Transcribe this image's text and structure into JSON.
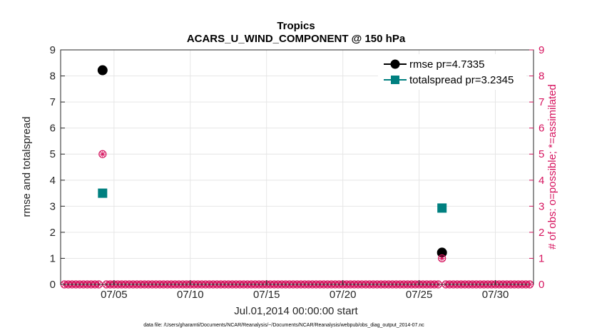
{
  "colors": {
    "rmse": "#000000",
    "spread": "#008080",
    "obs": "#d6135e",
    "grid": "#e6e6e6",
    "axis": "#262626"
  },
  "chart_data": {
    "type": "scatter",
    "title": "Tropics",
    "subtitle": "ACARS_U_WIND_COMPONENT @ 150 hPa",
    "xlabel": "Jul.01,2014 00:00:00 start",
    "ylabel_left": "rmse and totalspread",
    "ylabel_right": "# of obs: o=possible; *=assimilated",
    "footnote": "data file: /Users/gharamti/Documents/NCAR/Reanalysis/~/Documents/NCAR/Reanalysis/webpub/obs_diag_output_2014-07.nc",
    "xlim": [
      0.5,
      31.5
    ],
    "ylim": [
      0,
      9
    ],
    "ylim_right": [
      0,
      9
    ],
    "xtick_values": [
      4,
      9,
      14,
      19,
      24,
      29
    ],
    "xtick_labels": [
      "07/05",
      "07/10",
      "07/15",
      "07/20",
      "07/25",
      "07/30"
    ],
    "ytick_labels": [
      "0",
      "1",
      "2",
      "3",
      "4",
      "5",
      "6",
      "7",
      "8",
      "9"
    ],
    "ytick_labels_right": [
      "0",
      "1",
      "2",
      "3",
      "4",
      "5",
      "6",
      "7",
      "8",
      "9"
    ],
    "legend": {
      "position": "top-right",
      "entries": [
        "rmse pr=4.7335",
        "totalspread pr=3.2345"
      ]
    },
    "series": [
      {
        "name": "rmse",
        "marker": "circle",
        "points": [
          {
            "x": 3.25,
            "y": 8.22
          },
          {
            "x": 25.5,
            "y": 1.22
          }
        ]
      },
      {
        "name": "totalspread",
        "marker": "square",
        "points": [
          {
            "x": 3.25,
            "y": 3.5
          },
          {
            "x": 25.5,
            "y": 2.93
          }
        ]
      },
      {
        "name": "obs possible / assimilated",
        "marker": "circle-star",
        "points": [
          {
            "x": 3.25,
            "y": 5
          },
          {
            "x": 25.5,
            "y": 1
          }
        ]
      }
    ],
    "zero_obs_x": [
      0.75,
      1.0,
      1.25,
      1.5,
      1.75,
      2.0,
      2.25,
      2.5,
      2.75,
      3.0,
      3.5,
      3.75,
      4.0,
      4.25,
      4.5,
      4.75,
      5.0,
      5.25,
      5.5,
      5.75,
      6.0,
      6.25,
      6.5,
      6.75,
      7.0,
      7.25,
      7.5,
      7.75,
      8.0,
      8.25,
      8.5,
      8.75,
      9.0,
      9.25,
      9.5,
      9.75,
      10.0,
      10.25,
      10.5,
      10.75,
      11.0,
      11.25,
      11.5,
      11.75,
      12.0,
      12.25,
      12.5,
      12.75,
      13.0,
      13.25,
      13.5,
      13.75,
      14.0,
      14.25,
      14.5,
      14.75,
      15.0,
      15.25,
      15.5,
      15.75,
      16.0,
      16.25,
      16.5,
      16.75,
      17.0,
      17.25,
      17.5,
      17.75,
      18.0,
      18.25,
      18.5,
      18.75,
      19.0,
      19.25,
      19.5,
      19.75,
      20.0,
      20.25,
      20.5,
      20.75,
      21.0,
      21.25,
      21.5,
      21.75,
      22.0,
      22.25,
      22.5,
      22.75,
      23.0,
      23.25,
      23.5,
      23.75,
      24.0,
      24.25,
      24.5,
      24.75,
      25.0,
      25.25,
      25.75,
      26.0,
      26.25,
      26.5,
      26.75,
      27.0,
      27.25,
      27.5,
      27.75,
      28.0,
      28.25,
      28.5,
      28.75,
      29.0,
      29.25,
      29.5,
      29.75,
      30.0,
      30.25,
      30.5,
      30.75,
      31.0,
      31.25
    ]
  }
}
